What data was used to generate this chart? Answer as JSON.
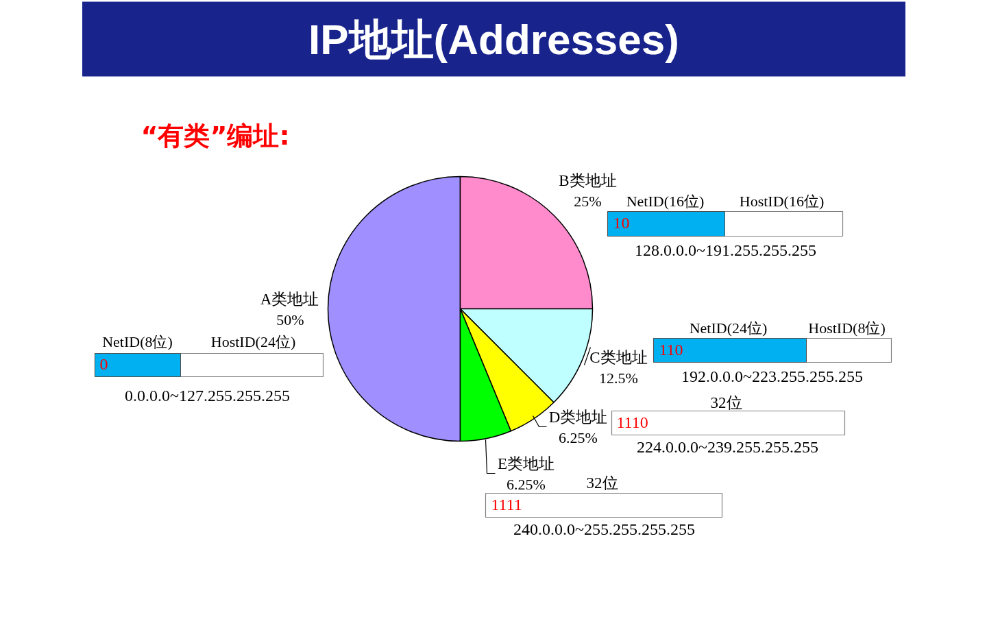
{
  "chart_data": {
    "type": "pie",
    "title": "IP地址(Addresses)",
    "subtitle": "“有类”编址:",
    "categories": [
      "A类地址",
      "B类地址",
      "C类地址",
      "D类地址",
      "E类地址"
    ],
    "values": [
      50,
      25,
      12.5,
      6.25,
      6.25
    ],
    "value_labels": [
      "50%",
      "25%",
      "12.5%",
      "6.25%",
      "6.25%"
    ],
    "colors": [
      "#9f8fff",
      "#ff8acc",
      "#c0ffff",
      "#ffff00",
      "#00ff00"
    ],
    "annotations": [
      "NetID(8位)",
      "HostID(24位)",
      "0",
      "0.0.0.0~127.255.255.255",
      "NetID(16位)",
      "HostID(16位)",
      "10",
      "128.0.0.0~191.255.255.255",
      "NetID(24位)",
      "HostID(8位)",
      "110",
      "192.0.0.0~223.255.255.255",
      "32位",
      "1110",
      "224.0.0.0~239.255.255.255",
      "32位",
      "1111",
      "240.0.0.0~255.255.255.255"
    ]
  }
}
